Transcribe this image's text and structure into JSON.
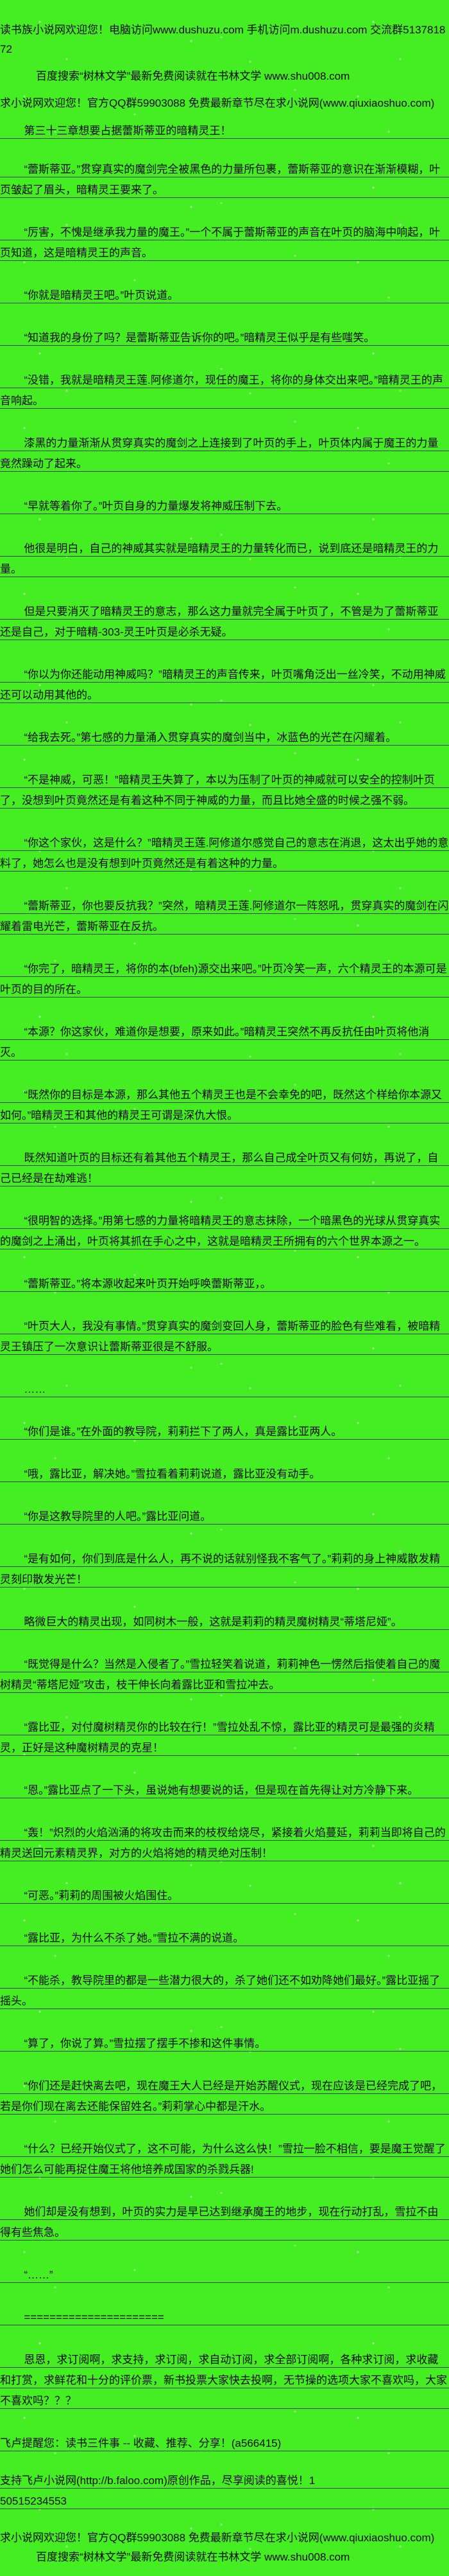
{
  "page": {
    "background_color": "#44ee22",
    "text_color": "#0a0a0a",
    "rule_color": "#3d3d3d"
  },
  "header": {
    "site_notice_1": "读书族小说网欢迎您！电脑访问www.dushuzu.com 手机访问m.dushuzu.com 交流群513781872",
    "promo": "百度搜索“树林文学”最新免费阅读就在书林文学 www.shu008.com",
    "site_notice_2": "求小说网欢迎您！官方QQ群59903088 免费最新章节尽在求小说网(www.qiuxiaoshuo.com)",
    "chapter_title": "第三十三章想要占据蕾斯蒂亚的暗精灵王！"
  },
  "content": {
    "paragraphs": [
      "“蕾斯蒂亚。”贯穿真实的魔剑完全被黑色的力量所包裹，蕾斯蒂亚的意识在渐渐模糊，叶页皱起了眉头，暗精灵王要来了。",
      "“厉害，不愧是继承我力量的魔王。”一个不属于蕾斯蒂亚的声音在叶页的脑海中响起，叶页知道，这是暗精灵王的声音。",
      "“你就是暗精灵王吧。”叶页说道。",
      "“知道我的身份了吗？是蕾斯蒂亚告诉你的吧。”暗精灵王似乎是有些嗤笑。",
      "“没错，我就是暗精灵王莲.阿修道尔，现任的魔王，将你的身体交出来吧。”暗精灵王的声音响起。",
      "漆黑的力量渐渐从贯穿真实的魔剑之上连接到了叶页的手上，叶页体内属于魔王的力量竟然躁动了起来。",
      "“早就等着你了。”叶页自身的力量爆发将神威压制下去。",
      "他很是明白，自己的神威其实就是暗精灵王的力量转化而已，说到底还是暗精灵王的力量。",
      "但是只要消灭了暗精灵王的意志，那么这力量就完全属于叶页了，不管是为了蕾斯蒂亚还是自己，对于暗精-303-灵王叶页是必杀无疑。",
      "“你以为你还能动用神威吗？”暗精灵王的声音传来，叶页嘴角泛出一丝冷笑，不动用神威还可以动用其他的。",
      "“给我去死。”第七感的力量涌入贯穿真实的魔剑当中，冰蓝色的光芒在闪耀着。",
      "“不是神威，可恶！”暗精灵王失算了，本以为压制了叶页的神威就可以安全的控制叶页了，没想到叶页竟然还是有着这种不同于神威的力量，而且比她全盛的时候之强不弱。",
      "“你这个家伙，这是什么？”暗精灵王莲.阿修道尔感觉自己的意志在消退，这太出乎她的意料了，她怎么也是没有想到叶页竟然还是有着这种的力量。",
      "“蕾斯蒂亚，你也要反抗我？”突然，暗精灵王莲.阿修道尔一阵怒吼，贯穿真实的魔剑在闪耀着雷电光芒，蕾斯蒂亚在反抗。",
      "“你完了，暗精灵王，将你的本(bfeh)源交出来吧。”叶页冷笑一声，六个精灵王的本源可是叶页的目的所在。",
      "“本源？你这家伙，难道你是想要，原来如此。”暗精灵王突然不再反抗任由叶页将他消灭。",
      "“既然你的目标是本源，那么其他五个精灵王也是不会幸免的吧，既然这个样给你本源又如何。”暗精灵王和其他的精灵王可谓是深仇大恨。",
      "既然知道叶页的目标还有着其他五个精灵王，那么自己成全叶页又有何妨，再说了，自己已经是在劫难逃！",
      "“很明智的选择。”用第七感的力量将暗精灵王的意志抹除，一个暗黑色的光球从贯穿真实的魔剑之上涌出，叶页将其抓在手心之中，这就是暗精灵王所拥有的六个世界本源之一。",
      "“蕾斯蒂亚。”将本源收起来叶页开始呼唤蕾斯蒂亚，。",
      "“叶页大人，我没有事情。”贯穿真实的魔剑变回人身，蕾斯蒂亚的脸色有些难看，被暗精灵王镇压了一次意识让蕾斯蒂亚很是不舒服。",
      "……",
      "“你们是谁。”在外面的教导院，莉莉拦下了两人，真是露比亚两人。",
      "“哦，露比亚，解决她。”雪拉看着莉莉说道，露比亚没有动手。",
      "“你是这教导院里的人吧。”露比亚问道。",
      "“是有如何，你们到底是什么人，再不说的话就别怪我不客气了。”莉莉的身上神威散发精灵刻印散发光芒！",
      "略微巨大的精灵出现，如同树木一般，这就是莉莉的精灵魔树精灵“蒂塔尼娅”。",
      "“既觉得是什么？当然是入侵者了。”雪拉轻笑着说道，莉莉神色一愣然后指使着自己的魔树精灵“蒂塔尼娅”攻击，枝干伸长向着露比亚和雪拉冲去。",
      "“露比亚，对付魔树精灵你的比较在行！”雪拉处乱不惊，露比亚的精灵可是最强的炎精灵，正好是这种魔树精灵的克星！",
      "“恩。”露比亚点了一下头，虽说她有想要说的话，但是现在首先得让对方冷静下来。",
      "“轰！”炽烈的火焰汹涌的将攻击而来的枝杈给烧尽，紧接着火焰蔓延，莉莉当即将自己的精灵送回元素精灵界，对方的火焰将她的精灵绝对压制！",
      "“可恶。”莉莉的周围被火焰围住。",
      "“露比亚，为什么不杀了她。”雪拉不满的说道。",
      "“不能杀，教导院里的都是一些潜力很大的，杀了她们还不如劝降她们最好。”露比亚摇了摇头。",
      "“算了，你说了算。”雪拉摆了摆手不掺和这件事情。",
      "“你们还是赶快离去吧，现在魔王大人已经是开始苏醒仪式，现在应该是已经完成了吧，若是你们现在离去还能保留姓名。”莉莉掌心中都是汗水。",
      "“什么？已经开始仪式了，这不可能，为什么这么快！”雪拉一脸不相信，要是魔王觉醒了她们怎么可能再捉住魔王将他培养成国家的杀戮兵器!",
      "她们却是没有想到，叶页的实力是早已达到继承魔王的地步，现在行动打乱，雪拉不由得有些焦急。",
      "“……”",
      "======================",
      "恩恩，求订阅啊，求支持，求订阅，求自动订阅，求全部订阅啊，各种求订阅，求收藏和打赏，求鲜花和十分的评价票，新书投票大家快去投啊，无节操的选项大家不喜欢吗，大家不喜欢吗？？？"
    ]
  },
  "footer": {
    "reminder": "飞卢提醒您：读书三件事 -- 收藏、推荐、分享！(a566415)",
    "support": "支持飞卢小说网(http://b.faloo.com)原创作品，尽享阅读的喜悦！1",
    "number": "50515234553",
    "site_notice": "求小说网欢迎您！官方QQ群59903088 免费最新章节尽在求小说网(www.qiuxiaoshuo.com)",
    "promo": "百度搜索“树林文学”最新免费阅读就在书林文学 www.shu008.com"
  }
}
